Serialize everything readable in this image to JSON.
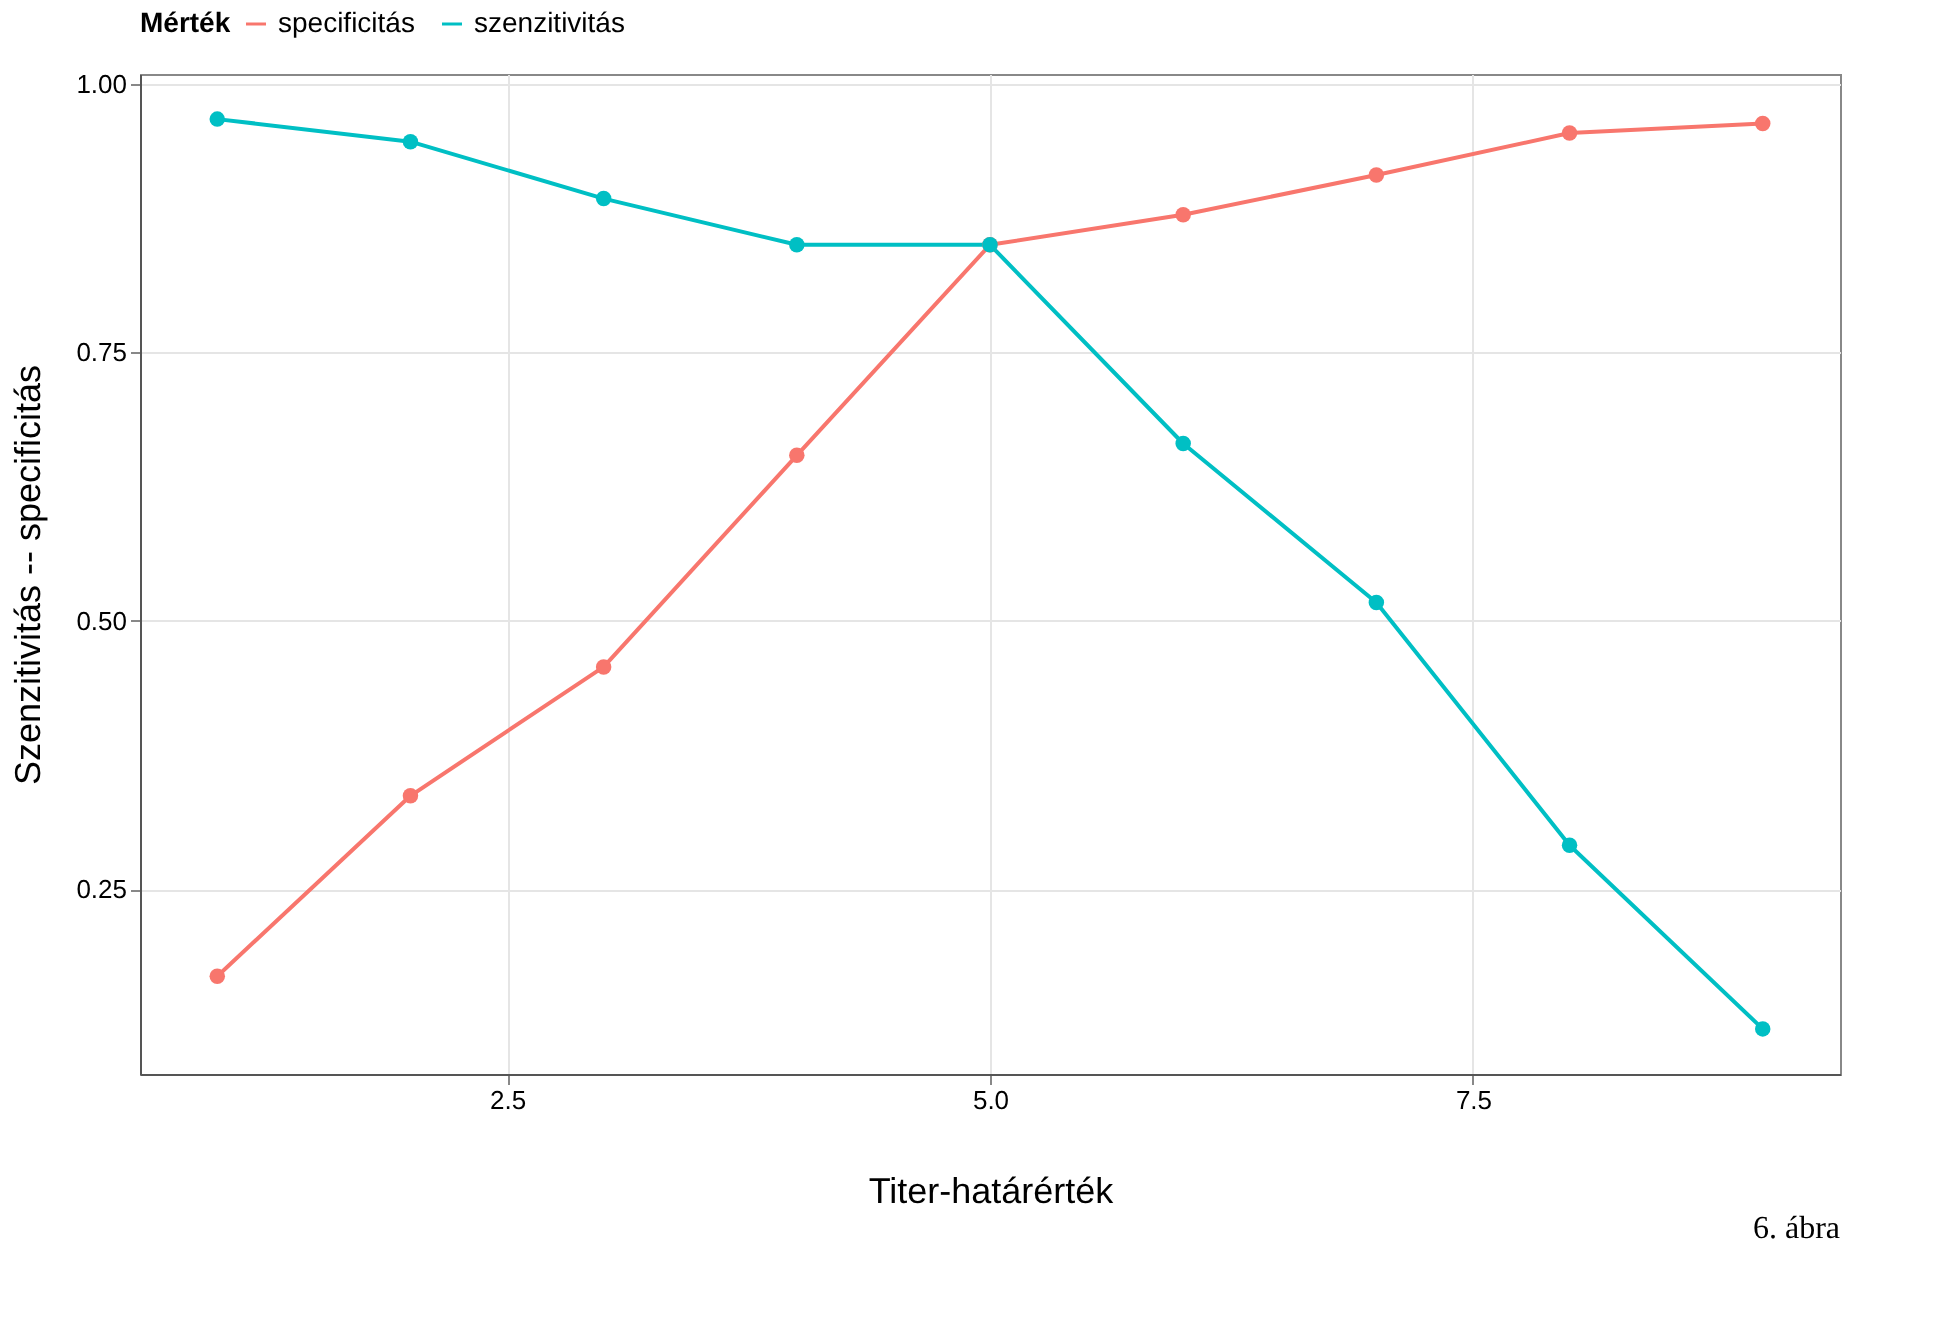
{
  "chart_data": {
    "type": "line",
    "xlabel": "Titer-határérték",
    "ylabel": "Szenzitivitás -- specificitás",
    "legend_title": "Mérték",
    "x": [
      1,
      2,
      3,
      4,
      5,
      6,
      7,
      8,
      9
    ],
    "series": [
      {
        "name": "specificitás",
        "color": "#f8766d",
        "values": [
          0.169,
          0.337,
          0.457,
          0.654,
          0.85,
          0.878,
          0.915,
          0.954,
          0.963
        ]
      },
      {
        "name": "szenzitivitás",
        "color": "#00bfc4",
        "values": [
          0.967,
          0.946,
          0.893,
          0.85,
          0.85,
          0.665,
          0.517,
          0.291,
          0.12
        ]
      }
    ],
    "xlim": [
      0.6,
      9.4
    ],
    "ylim": [
      0.078,
      1.009
    ],
    "xticks": [
      2.5,
      {
        "value": 5,
        "label": "5.0"
      },
      7.5
    ],
    "yticks": [
      0.25,
      {
        "value": 0.5,
        "label": "0.50"
      },
      0.75,
      {
        "value": 1,
        "label": "1.00"
      }
    ],
    "grid": true,
    "legend": "top",
    "marker": "circle",
    "line_style": "solid",
    "annotations": [
      "6. ábra"
    ]
  }
}
